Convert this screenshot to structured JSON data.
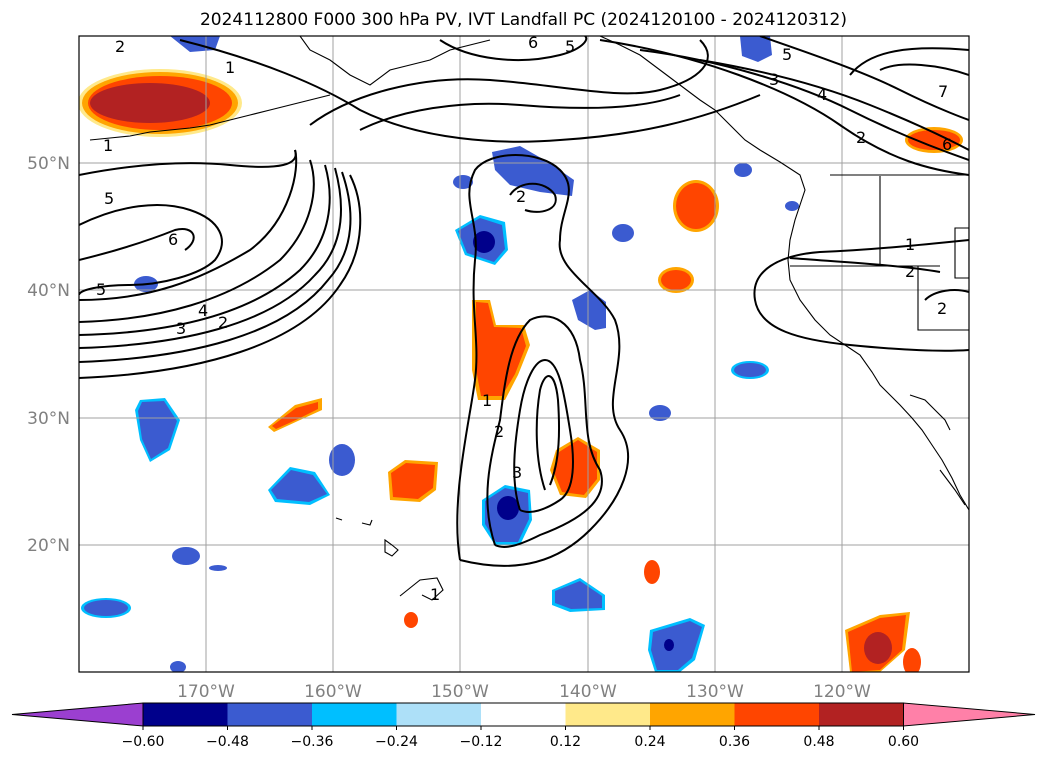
{
  "title": "2024112800 F000 300 hPa PV, IVT Landfall PC (2024120100 - 2024120312)",
  "map": {
    "lat_labels": [
      "50°N",
      "40°N",
      "30°N",
      "20°N"
    ],
    "lon_labels": [
      "170°W",
      "160°W",
      "150°W",
      "140°W",
      "130°W",
      "120°W"
    ],
    "contour_labels": [
      "2",
      "1",
      "6",
      "5",
      "5",
      "3",
      "4",
      "2",
      "7",
      "6",
      "1",
      "5",
      "6",
      "2",
      "5",
      "4",
      "3",
      "2",
      "1",
      "2",
      "2",
      "1",
      "2",
      "3",
      "1"
    ]
  },
  "colorbar": {
    "labels": [
      "−0.60",
      "−0.48",
      "−0.36",
      "−0.24",
      "−0.12",
      "0.12",
      "0.24",
      "0.36",
      "0.48",
      "0.60"
    ],
    "colors": [
      "#9b3fd0",
      "#00008b",
      "#3b5bd0",
      "#00bfff",
      "#ade0f8",
      "#ffffff",
      "#ffe98a",
      "#ffa500",
      "#ff4500",
      "#b22222",
      "#ff80a8"
    ]
  }
}
